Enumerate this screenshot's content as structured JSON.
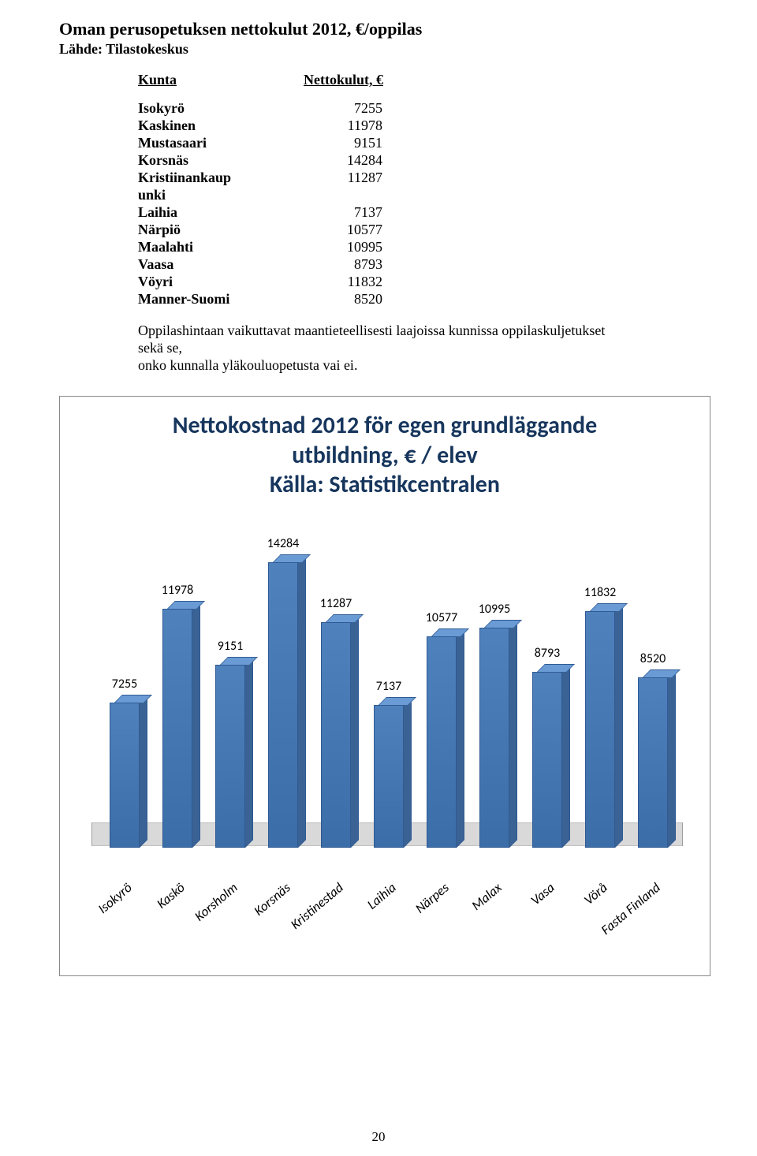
{
  "title": "Oman perusopetuksen nettokulut 2012, €/oppilas",
  "subtitle": "Lähde: Tilastokeskus",
  "tableHeader": {
    "col1": "Kunta",
    "col2": "Nettokulut, €"
  },
  "rows": [
    {
      "name": "Isokyrö",
      "value": "7255"
    },
    {
      "name": "Kaskinen",
      "value": "11978"
    },
    {
      "name": "Mustasaari",
      "value": "9151"
    },
    {
      "name": "Korsnäs",
      "value": "14284"
    },
    {
      "name": "Kristiinankaupunki",
      "value": "11287"
    },
    {
      "name": "Laihia",
      "value": "7137"
    },
    {
      "name": "Närpiö",
      "value": "10577"
    },
    {
      "name": "Maalahti",
      "value": "10995"
    },
    {
      "name": "Vaasa",
      "value": "8793"
    },
    {
      "name": "Vöyri",
      "value": "11832"
    },
    {
      "name": "Manner-Suomi",
      "value": "8520"
    }
  ],
  "notes": [
    "Oppilashintaan vaikuttavat maantieteellisesti laajoissa kunnissa oppilaskuljetukset",
    "sekä se,",
    "onko kunnalla yläkouluopetusta vai ei."
  ],
  "chart": {
    "type": "bar",
    "title_line1": "Nettokostnad 2012 för egen grundläggande",
    "title_line2": "utbildning, € / elev",
    "title_line3": "Källa: Statistikcentralen",
    "title_color": "#17365d",
    "title_fontsize": 30,
    "bar_color_front": "#4f81bd",
    "bar_color_top": "#6a9bd4",
    "bar_color_side": "#3a6294",
    "bar_border": "#2f5a93",
    "floor_color": "#d9d9d9",
    "background_color": "#ffffff",
    "label_fontsize": 16,
    "xlabel_fontsize": 17,
    "max_value": 14284,
    "plot_max": 15000,
    "categories": [
      "Isokyrö",
      "Kaskö",
      "Korsholm",
      "Korsnäs",
      "Kristinestad",
      "Laihia",
      "Närpes",
      "Malax",
      "Vasa",
      "Vörå",
      "Fasta Finland"
    ],
    "values": [
      7255,
      11978,
      9151,
      14284,
      11287,
      7137,
      10577,
      10995,
      8793,
      11832,
      8520
    ]
  },
  "pageNumber": "20"
}
